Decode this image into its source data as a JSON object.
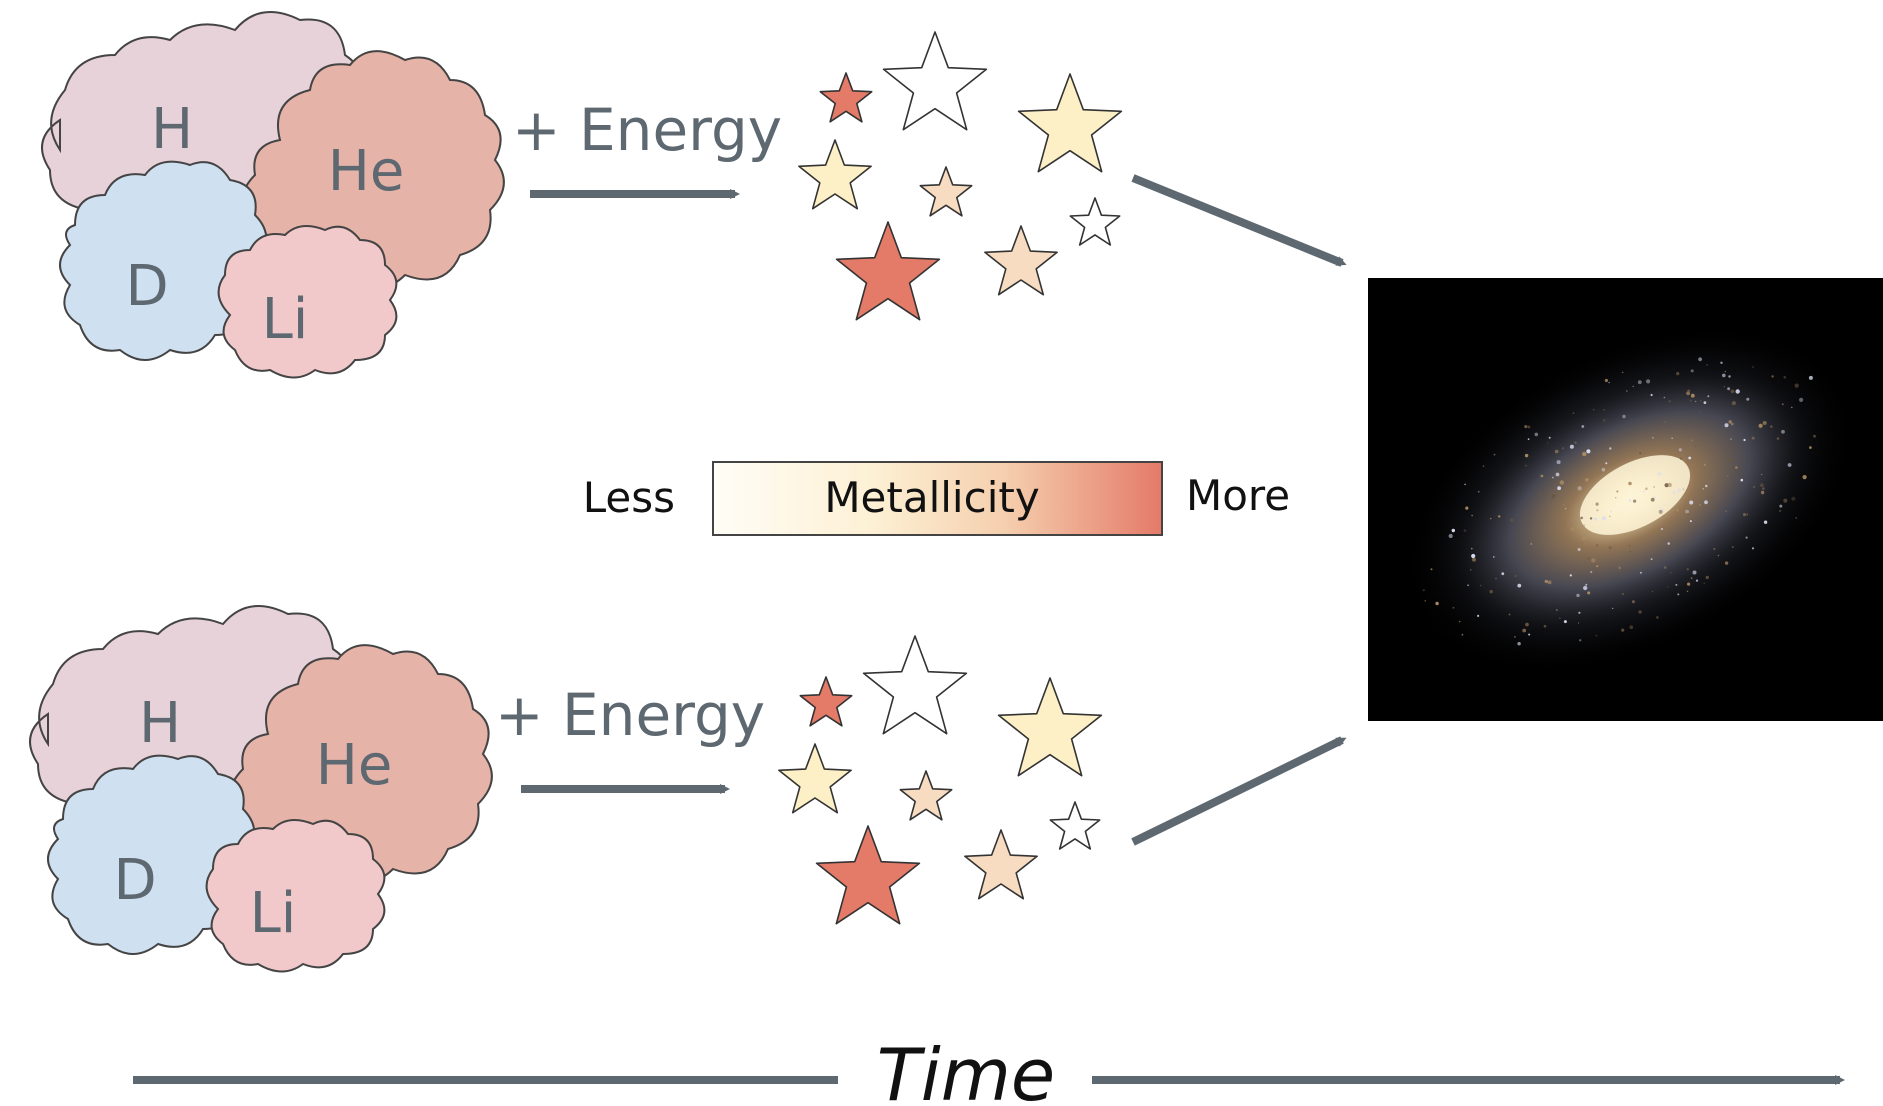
{
  "elements": {
    "top": [
      "H",
      "He",
      "D",
      "Li"
    ],
    "bottom": [
      "H",
      "He",
      "D",
      "Li"
    ]
  },
  "energy_label": "+ Energy",
  "legend": {
    "less": "Less",
    "title": "Metallicity",
    "more": "More"
  },
  "time_label": "Time",
  "colors": {
    "hydrogen_cloud": "#e8d2da",
    "helium_cloud": "#e6b3a8",
    "deuterium_cloud": "#cfe0f1",
    "lithium_cloud": "#f2c9cb",
    "cloud_text": "#5e6870",
    "arrow": "#5e6870",
    "metallicity_low": "#fffbef",
    "metallicity_mid": "#fbe6c4",
    "metallicity_high": "#e47a68",
    "star_white": "#ffffff",
    "star_yellow": "#fdf0c6",
    "star_peach": "#f7dcc1",
    "star_red": "#e47a68",
    "galaxy_background": "#000000"
  },
  "stars": {
    "top": [
      "star_red",
      "star_white",
      "star_yellow",
      "star_yellow",
      "star_peach",
      "star_white",
      "star_red",
      "star_peach"
    ],
    "bottom": [
      "star_red",
      "star_white",
      "star_yellow",
      "star_yellow",
      "star_peach",
      "star_white",
      "star_red",
      "star_peach"
    ]
  }
}
